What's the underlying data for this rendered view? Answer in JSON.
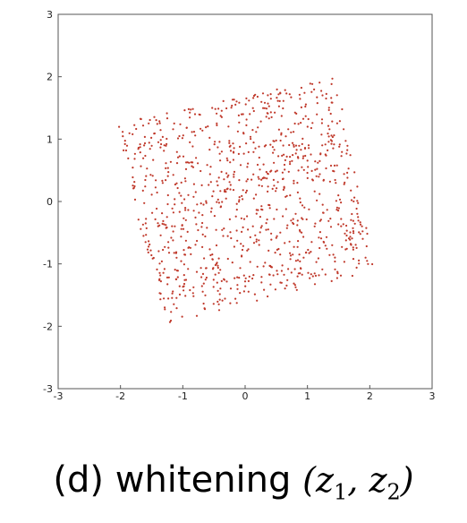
{
  "caption": {
    "label": "(d) whitening",
    "math_open": "(",
    "var1": "z",
    "sub1": "1",
    "sep": ", ",
    "var2": "z",
    "sub2": "2",
    "math_close": ")"
  },
  "chart_data": {
    "type": "scatter",
    "title": "",
    "xlabel": "",
    "ylabel": "",
    "xlim": [
      -3,
      3
    ],
    "ylim": [
      -3,
      3
    ],
    "xticks": [
      "-3",
      "-2",
      "-1",
      "0",
      "1",
      "2",
      "3"
    ],
    "yticks": [
      "-3",
      "-2",
      "-1",
      "0",
      "1",
      "2",
      "3"
    ],
    "grid": false,
    "marker_color": "#c0392b",
    "series": [
      {
        "points_count": 1000,
        "distribution": "uniform",
        "region_corners": [
          [
            -2.05,
            1.25
          ],
          [
            1.45,
            2.0
          ],
          [
            2.1,
            -1.1
          ],
          [
            -1.35,
            -2.0
          ]
        ]
      }
    ]
  }
}
